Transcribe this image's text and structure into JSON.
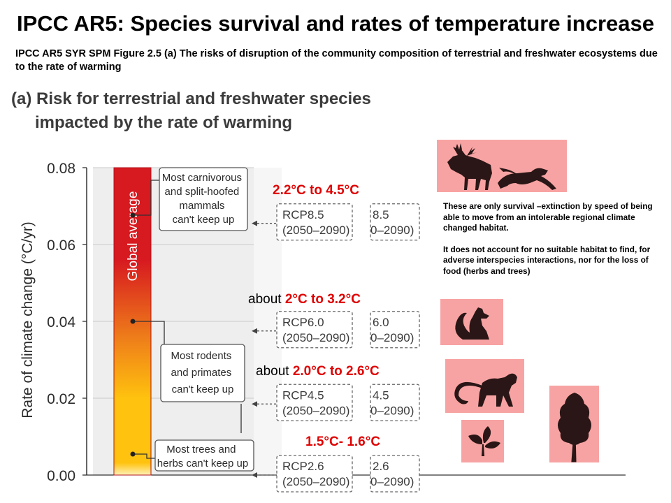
{
  "title": "IPCC AR5: Species survival and rates of temperature increase",
  "subtitle": "IPCC AR5 SYR SPM  Figure 2.5  (a) The risks of  disruption of the community composition of terrestrial and freshwater ecosystems due to the rate of warming",
  "panel": {
    "heading_line1": "(a) Risk for terrestrial and freshwater species",
    "heading_line2": "impacted by the rate of warming",
    "ylabel": "Rate of climate change (°C/yr)",
    "yticks": [
      "0.08",
      "0.06",
      "0.04",
      "0.02",
      "0.00"
    ],
    "bar_label": "Global average",
    "colors": {
      "bar_top": "#d71920",
      "bar_mid": "#ee7c1a",
      "bar_bottom": "#ffc20e",
      "plot_bg": "#eeeeee",
      "pale_bg": "#f5f5f5"
    }
  },
  "chart_data": {
    "type": "bar",
    "ylabel": "Rate of climate change (°C/yr)",
    "ylim": [
      0,
      0.08
    ],
    "categories": [
      "Global average"
    ],
    "values": [
      0.08
    ],
    "markers": [
      {
        "label": "Most carnivorous and split-hoofed mammals can't keep up",
        "value": 0.0655
      },
      {
        "label": "Most rodents and primates can't keep up",
        "value": 0.04
      },
      {
        "label": "Most trees and herbs can't keep up",
        "value": 0.0055
      }
    ],
    "scenarios": [
      {
        "name": "RCP8.5",
        "period": "(2050–2090)",
        "value": 0.0655
      },
      {
        "name": "RCP6.0",
        "period": "(2050–2090)",
        "value": 0.0375
      },
      {
        "name": "RCP4.5",
        "period": "(2050–2090)",
        "value": 0.0185
      },
      {
        "name": "RCP2.6",
        "period": "(2050–2090)",
        "value": 0.0
      }
    ]
  },
  "species_boxes": {
    "mammals": [
      "Most carnivorous",
      "and split-hoofed",
      "mammals",
      "can't keep up"
    ],
    "rodents": [
      "Most rodents",
      "and primates",
      "can't keep up"
    ],
    "trees": [
      "Most trees and",
      "herbs can't keep up"
    ]
  },
  "scenarios": [
    {
      "name": "RCP8.5",
      "period": "(2050–2090)",
      "name_cut": "8.5",
      "period_cut": "0–2090)"
    },
    {
      "name": "RCP6.0",
      "period": "(2050–2090)",
      "name_cut": "6.0",
      "period_cut": "0–2090)"
    },
    {
      "name": "RCP4.5",
      "period": "(2050–2090)",
      "name_cut": "4.5",
      "period_cut": "0–2090)"
    },
    {
      "name": "RCP2.6",
      "period": "(2050–2090)",
      "name_cut": "2.6",
      "period_cut": "0–2090)"
    }
  ],
  "temperature_labels": [
    {
      "prefix": "",
      "range": "2.2°C to 4.5°C"
    },
    {
      "prefix": "about ",
      "range": "2°C to 3.2°C"
    },
    {
      "prefix": "about ",
      "range": "2.0°C to 2.6°C"
    },
    {
      "prefix": "",
      "range": "1.5°C- 1.6°C"
    }
  ],
  "note": {
    "paragraph1": "These are only survival –extinction by speed of being able to move from an intolerable regional climate changed habitat.",
    "paragraph2": "It does not account for  no suitable habitat to find, for adverse interspecies interactions, nor for the loss of  food (herbs and trees)"
  },
  "icons": [
    "moose-icon",
    "cougar-icon",
    "squirrel-icon",
    "monkey-icon",
    "plant-icon",
    "tree-icon"
  ],
  "icon_colors": {
    "box": "#f8a3a3",
    "silhouette": "#2a1616"
  }
}
